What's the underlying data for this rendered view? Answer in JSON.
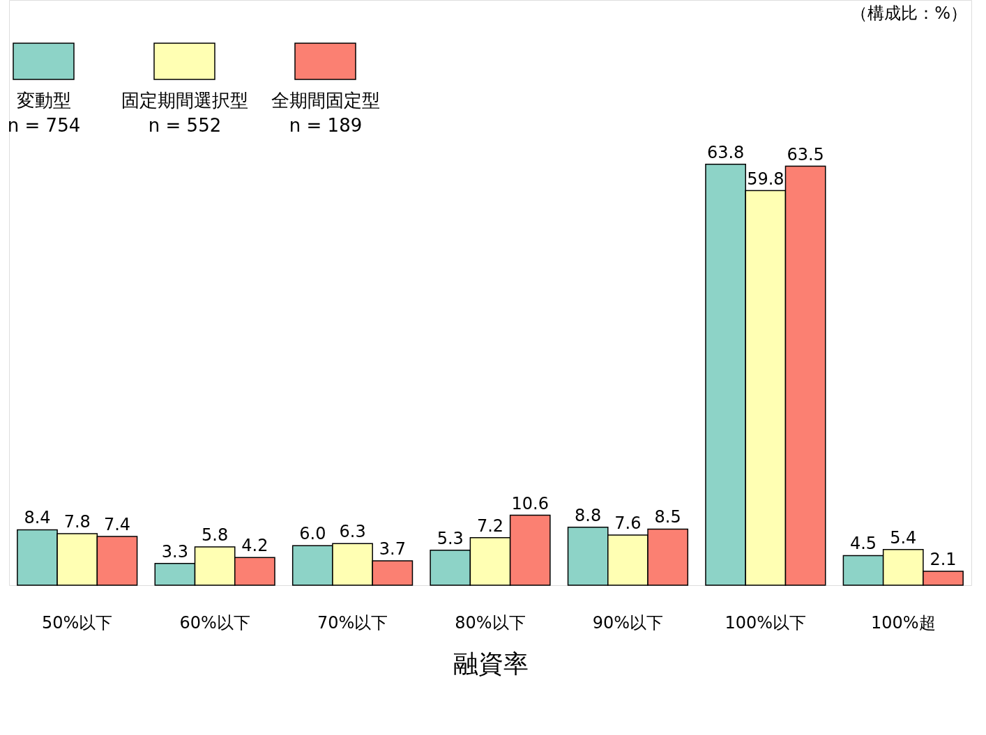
{
  "chart_data": {
    "type": "bar",
    "xlabel": "融資率",
    "categories": [
      "50%以下",
      "60%以下",
      "70%以下",
      "80%以下",
      "90%以下",
      "100%以下",
      "100%超"
    ],
    "series": [
      {
        "name": "変動型\nn = 754",
        "color": "#8dd3c7",
        "values": [
          8.4,
          3.3,
          6.0,
          5.3,
          8.8,
          63.8,
          4.5
        ],
        "value_labels": [
          "8.4",
          "3.3",
          "6.0",
          "5.3",
          "8.8",
          "63.8",
          "4.5"
        ]
      },
      {
        "name": "固定期間選択型\nn = 552",
        "color": "#ffffb3",
        "values": [
          7.8,
          5.8,
          6.3,
          7.2,
          7.6,
          59.8,
          5.4
        ],
        "value_labels": [
          "7.8",
          "5.8",
          "6.3",
          "7.2",
          "7.6",
          "59.8",
          "5.4"
        ]
      },
      {
        "name": "全期間固定型\nn = 189",
        "color": "#fb8072",
        "values": [
          7.4,
          4.2,
          3.7,
          10.6,
          8.5,
          63.5,
          2.1
        ],
        "value_labels": [
          "7.4",
          "4.2",
          "3.7",
          "10.6",
          "8.5",
          "63.5",
          "2.1"
        ]
      }
    ],
    "annotations": [
      "（構成比：%）"
    ],
    "legend": "top left",
    "grid": false
  }
}
